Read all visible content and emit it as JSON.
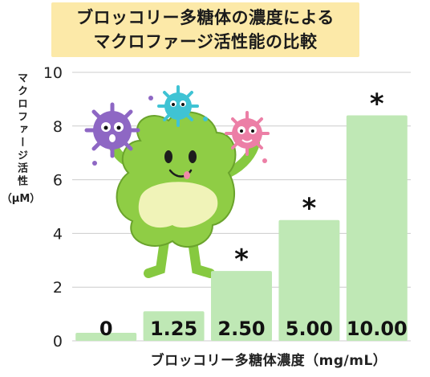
{
  "chart_data": {
    "type": "bar",
    "title": [
      "ブロッコリー多糖体の濃度による",
      "マクロファージ活性能の比較"
    ],
    "xlabel": "ブロッコリー多糖体濃度（mg/mL）",
    "ylabel": "マクロファージ活性",
    "ylabel_unit": "（μM）",
    "categories": [
      "0",
      "1.25",
      "2.50",
      "5.00",
      "10.00"
    ],
    "values": [
      0.3,
      1.1,
      2.6,
      4.5,
      8.4
    ],
    "significance": [
      "",
      "",
      "*",
      "*",
      "*"
    ],
    "ylim": [
      0,
      10
    ],
    "yticks": [
      0,
      2,
      4,
      6,
      8,
      10
    ],
    "grid": true,
    "bar_color": "#bfe8b5",
    "grid_color": "#cccccc",
    "illustration": "smiling-green-immune-cell-holding-germs"
  }
}
